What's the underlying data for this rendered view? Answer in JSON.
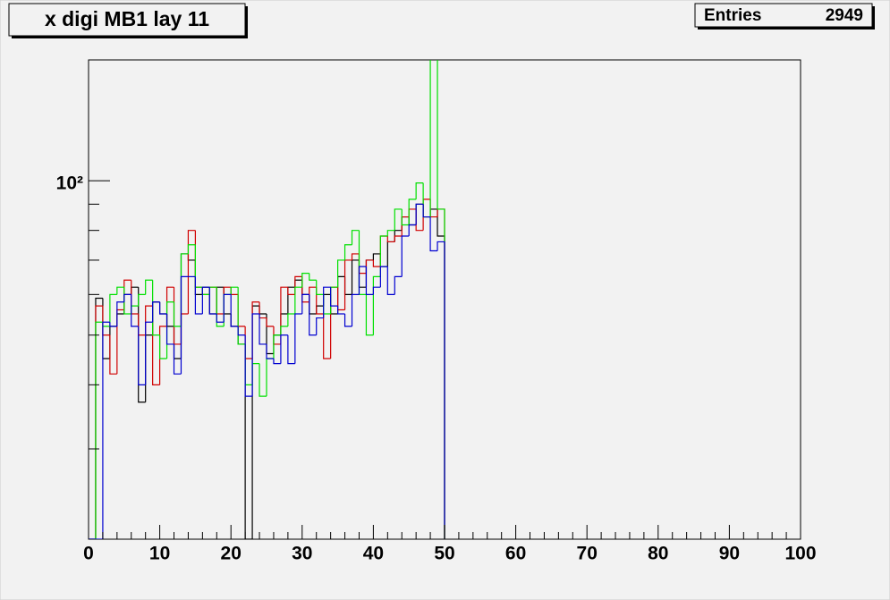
{
  "chart_data": {
    "type": "histogram",
    "title": "x digi MB1 lay 11",
    "stats": {
      "label": "Entries",
      "value": "2949"
    },
    "log_y": true,
    "xlim": [
      0,
      100
    ],
    "xticks": [
      0,
      10,
      20,
      30,
      40,
      50,
      60,
      70,
      80,
      90,
      100
    ],
    "xminorticks": [
      2,
      4,
      6,
      8,
      12,
      14,
      16,
      18,
      22,
      24,
      26,
      28,
      32,
      34,
      36,
      38,
      42,
      44,
      46,
      48,
      52,
      54,
      56,
      58,
      62,
      64,
      66,
      68,
      72,
      74,
      76,
      78,
      82,
      84,
      86,
      88,
      92,
      94,
      96,
      98
    ],
    "ylim": [
      20,
      172
    ],
    "yticks": [
      {
        "value": 100,
        "label": "10²"
      }
    ],
    "yminorticks": [
      30,
      40,
      50,
      60,
      70,
      80,
      90
    ],
    "bins": [
      0,
      1,
      2,
      3,
      4,
      5,
      6,
      7,
      8,
      9,
      10,
      11,
      12,
      13,
      14,
      15,
      16,
      17,
      18,
      19,
      20,
      21,
      22,
      23,
      24,
      25,
      26,
      27,
      28,
      29,
      30,
      31,
      32,
      33,
      34,
      35,
      36,
      37,
      38,
      39,
      40,
      41,
      42,
      43,
      44,
      45,
      46,
      47,
      48,
      49,
      50
    ],
    "series": [
      {
        "color": "#000000",
        "values": [
          0,
          59,
          45,
          52,
          55,
          60,
          62,
          37,
          50,
          58,
          55,
          52,
          45,
          72,
          70,
          60,
          62,
          55,
          62,
          55,
          52,
          48,
          0,
          57,
          55,
          46,
          50,
          55,
          62,
          64,
          60,
          55,
          57,
          60,
          55,
          65,
          60,
          70,
          62,
          70,
          72,
          68,
          76,
          80,
          85,
          82,
          90,
          85,
          88,
          78
        ]
      },
      {
        "color": "#d00000",
        "values": [
          0,
          57,
          50,
          42,
          56,
          64,
          55,
          50,
          57,
          40,
          52,
          62,
          48,
          55,
          80,
          62,
          60,
          62,
          55,
          62,
          60,
          52,
          45,
          58,
          54,
          52,
          48,
          62,
          60,
          65,
          58,
          62,
          55,
          45,
          62,
          56,
          70,
          72,
          66,
          70,
          68,
          78,
          76,
          78,
          85,
          88,
          80,
          92,
          85,
          88
        ]
      },
      {
        "color": "#00e000",
        "values": [
          0,
          53,
          52,
          60,
          62,
          55,
          57,
          60,
          64,
          50,
          45,
          58,
          52,
          72,
          75,
          62,
          60,
          62,
          52,
          60,
          62,
          48,
          40,
          44,
          38,
          45,
          50,
          52,
          55,
          62,
          66,
          64,
          60,
          55,
          62,
          70,
          75,
          80,
          60,
          50,
          65,
          78,
          80,
          88,
          82,
          92,
          99,
          85,
          180,
          88
        ]
      },
      {
        "color": "#0000d0",
        "values": [
          0,
          0,
          53,
          52,
          58,
          60,
          52,
          40,
          53,
          58,
          55,
          48,
          42,
          65,
          65,
          55,
          62,
          55,
          53,
          60,
          52,
          50,
          38,
          55,
          48,
          45,
          44,
          50,
          44,
          55,
          60,
          50,
          54,
          62,
          57,
          55,
          52,
          60,
          68,
          60,
          62,
          68,
          60,
          65,
          78,
          82,
          90,
          85,
          73,
          76
        ]
      }
    ]
  }
}
